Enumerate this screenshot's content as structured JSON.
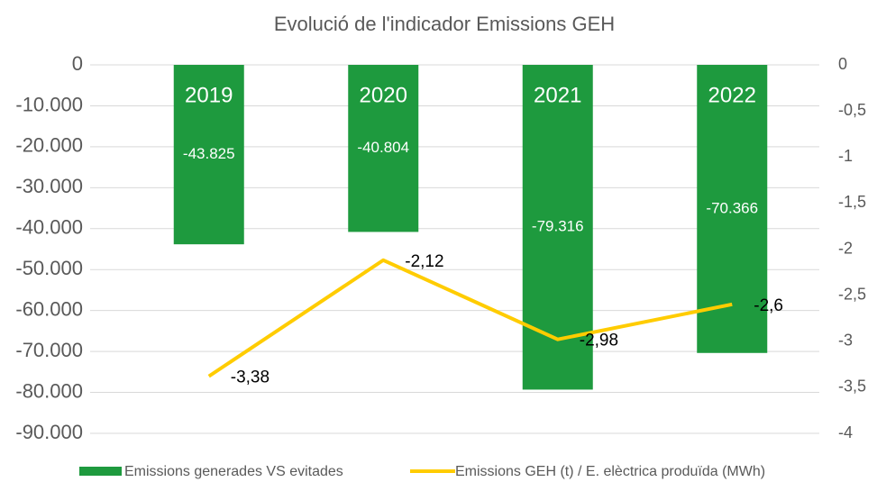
{
  "chart_data": {
    "type": "bar",
    "title": "Evolució de l'indicador Emissions GEH",
    "categories": [
      "2019",
      "2020",
      "2021",
      "2022"
    ],
    "series": [
      {
        "name": "Emissions generades VS evitades",
        "type": "bar",
        "color": "#1e9a3e",
        "values": [
          -43825,
          -40804,
          -79316,
          -70366
        ],
        "value_labels": [
          "-43.825",
          "-40.804",
          "-79.316",
          "-70.366"
        ]
      },
      {
        "name": "Emissions GEH (t) / E. elèctrica produïda (MWh)",
        "type": "line",
        "axis": "y2",
        "color": "#ffcc00",
        "values": [
          -3.38,
          -2.12,
          -2.98,
          -2.6
        ],
        "value_labels": [
          "-3,38",
          "-2,12",
          "-2,98",
          "-2,6"
        ]
      }
    ],
    "ylim": [
      -90000,
      0
    ],
    "yticks": [
      0,
      {
        "value": -10000,
        "label": "-10.000"
      },
      {
        "value": -20000,
        "label": "-20.000"
      },
      {
        "value": -30000,
        "label": "-30.000"
      },
      {
        "value": -40000,
        "label": "-40.000"
      },
      {
        "value": -50000,
        "label": "-50.000"
      },
      {
        "value": -60000,
        "label": "-60.000"
      },
      {
        "value": -70000,
        "label": "-70.000"
      },
      {
        "value": -80000,
        "label": "-80.000"
      },
      {
        "value": -90000,
        "label": "-90.000"
      }
    ],
    "y2lim": [
      -4,
      0
    ],
    "y2ticks": [
      0,
      {
        "value": -0.5,
        "label": "-0,5"
      },
      -1,
      {
        "value": -1.5,
        "label": "-1,5"
      },
      -2,
      {
        "value": -2.5,
        "label": "-2,5"
      },
      -3,
      {
        "value": -3.5,
        "label": "-3,5"
      },
      -4
    ],
    "grid": true,
    "legend": "bottom"
  }
}
